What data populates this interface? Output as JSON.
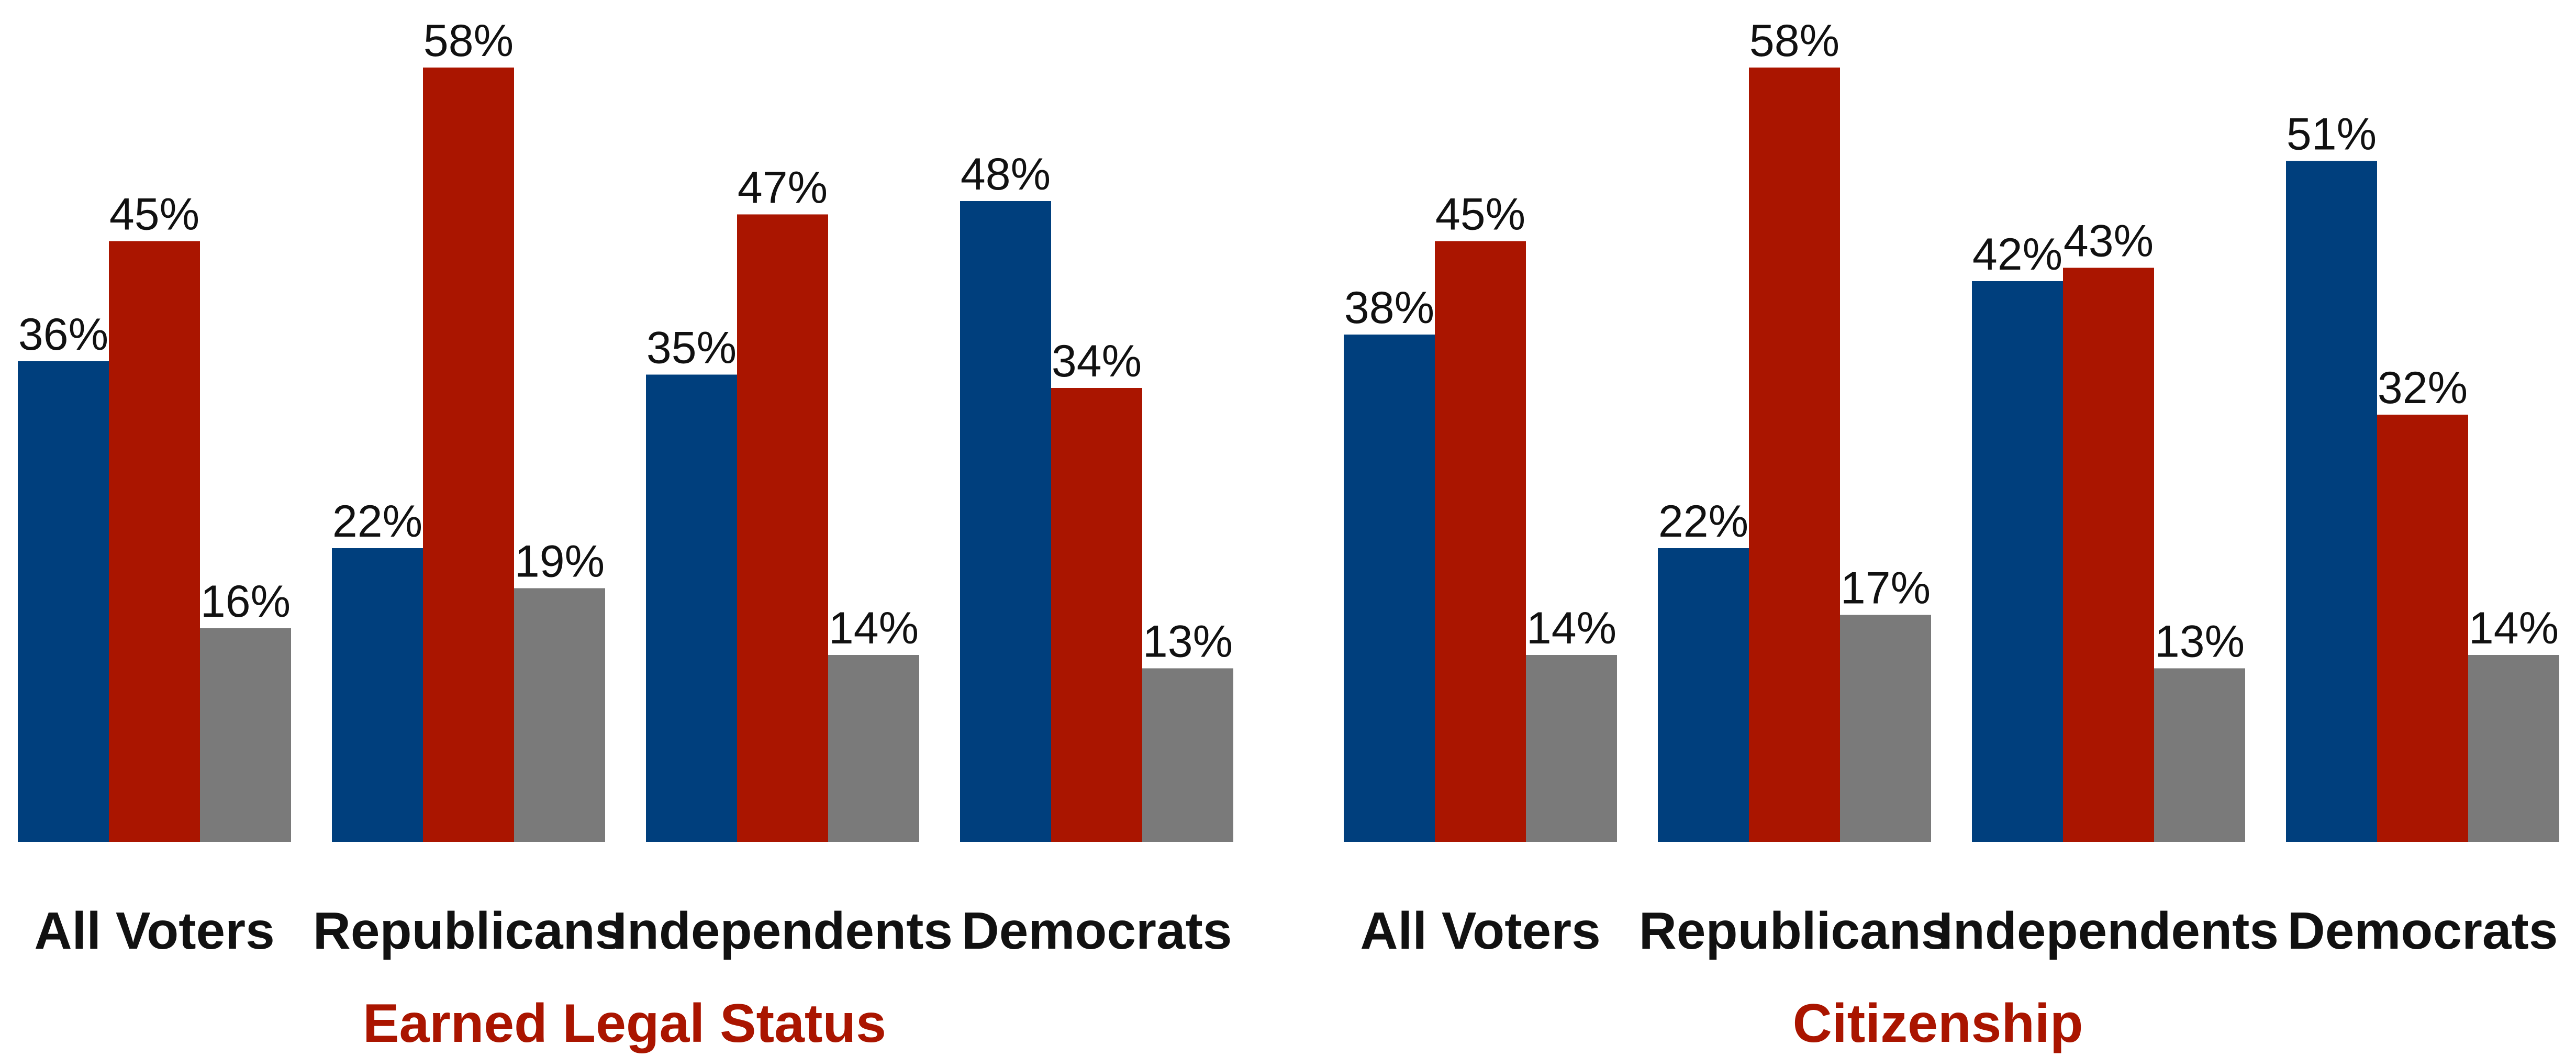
{
  "colors": {
    "series_1": "#003f7d",
    "series_2": "#aa1500",
    "series_3": "#7a7a7a",
    "title": "#aa1500"
  },
  "chart_data": [
    {
      "type": "bar",
      "title": "Earned Legal Status",
      "categories": [
        "All Voters",
        "Republicans",
        "Independents",
        "Democrats"
      ],
      "series": [
        {
          "values": [
            36,
            22,
            35,
            48
          ],
          "labels": [
            "36%",
            "22%",
            "35%",
            "48%"
          ]
        },
        {
          "values": [
            45,
            58,
            47,
            34
          ],
          "labels": [
            "45%",
            "58%",
            "47%",
            "34%"
          ]
        },
        {
          "values": [
            16,
            19,
            14,
            13
          ],
          "labels": [
            "16%",
            "19%",
            "14%",
            "13%"
          ]
        }
      ],
      "ylim": [
        0,
        58
      ],
      "grid": false
    },
    {
      "type": "bar",
      "title": "Citizenship",
      "categories": [
        "All Voters",
        "Republicans",
        "Independents",
        "Democrats"
      ],
      "series": [
        {
          "values": [
            38,
            22,
            42,
            51
          ],
          "labels": [
            "38%",
            "22%",
            "42%",
            "51%"
          ]
        },
        {
          "values": [
            45,
            58,
            43,
            32
          ],
          "labels": [
            "45%",
            "58%",
            "43%",
            "32%"
          ]
        },
        {
          "values": [
            14,
            17,
            13,
            14
          ],
          "labels": [
            "14%",
            "17%",
            "13%",
            "14%"
          ]
        }
      ],
      "ylim": [
        0,
        58
      ],
      "grid": false
    }
  ]
}
